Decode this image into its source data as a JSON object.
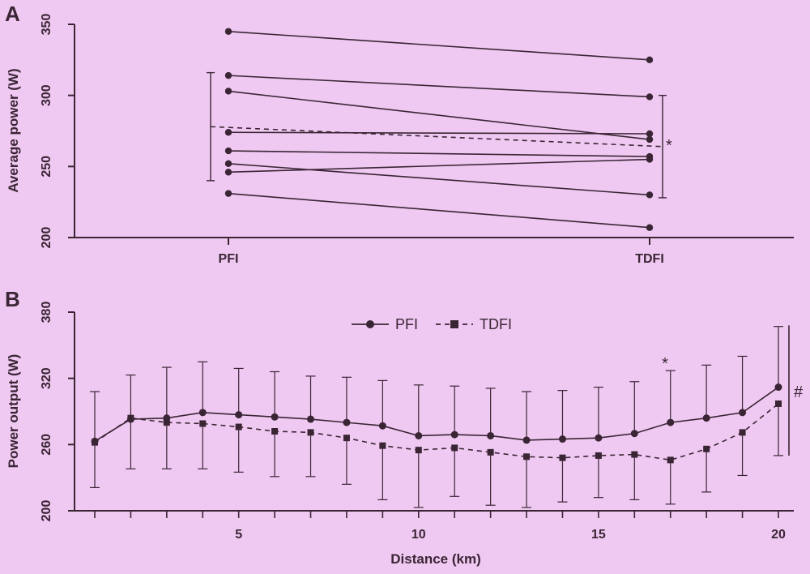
{
  "chart_data": [
    {
      "panel": "A",
      "type": "line",
      "title": "",
      "xlabel": "",
      "ylabel": "Average power (W)",
      "categories": [
        "PFI",
        "TDFI"
      ],
      "ylim": [
        200,
        350
      ],
      "yticks": [
        200,
        250,
        300,
        350
      ],
      "individuals": [
        {
          "values": [
            345,
            325
          ]
        },
        {
          "values": [
            314,
            299
          ]
        },
        {
          "values": [
            303,
            269
          ]
        },
        {
          "values": [
            274,
            273
          ]
        },
        {
          "values": [
            261,
            257
          ]
        },
        {
          "values": [
            252,
            230
          ]
        },
        {
          "values": [
            246,
            255
          ]
        },
        {
          "values": [
            231,
            207
          ]
        }
      ],
      "mean": {
        "values": [
          278,
          264
        ],
        "sd_low": [
          240,
          228
        ],
        "sd_high": [
          316,
          300
        ]
      },
      "annotations": [
        {
          "text": "*",
          "near": "TDFI mean"
        }
      ]
    },
    {
      "panel": "B",
      "type": "line",
      "title": "",
      "xlabel": "Distance (km)",
      "ylabel": "Power output (W)",
      "x": [
        1,
        2,
        3,
        4,
        5,
        6,
        7,
        8,
        9,
        10,
        11,
        12,
        13,
        14,
        15,
        16,
        17,
        18,
        19,
        20
      ],
      "xlim": [
        0.1,
        20.6
      ],
      "xticks": [
        5,
        10,
        15,
        20
      ],
      "ylim": [
        200,
        380
      ],
      "yticks": [
        200,
        260,
        320,
        380
      ],
      "legend": "top-center",
      "series": [
        {
          "name": "PFI",
          "marker": "circle",
          "linestyle": "solid",
          "values": [
            263,
            283,
            284,
            289,
            287,
            285,
            283,
            280,
            277,
            268,
            269,
            268,
            264,
            265,
            266,
            270,
            280,
            284,
            289,
            312
          ],
          "sd_high": [
            308,
            323,
            330,
            335,
            329,
            326,
            322,
            321,
            318,
            314,
            313,
            311,
            308,
            309,
            312,
            317,
            327,
            332,
            340,
            367
          ]
        },
        {
          "name": "TDFI",
          "marker": "square",
          "linestyle": "dashed",
          "values": [
            262,
            284,
            280,
            279,
            276,
            272,
            271,
            266,
            259,
            255,
            257,
            253,
            249,
            248,
            250,
            251,
            246,
            256,
            271,
            297
          ],
          "sd_low": [
            221,
            238,
            238,
            238,
            235,
            231,
            231,
            224,
            210,
            203,
            213,
            205,
            203,
            208,
            212,
            210,
            206,
            217,
            232,
            250
          ]
        }
      ],
      "bracket": {
        "range": [
          250,
          368
        ],
        "text": "#"
      },
      "annotations": [
        {
          "text": "*",
          "x": 17
        }
      ]
    }
  ],
  "labels": {
    "panelA": "A",
    "panelB": "B",
    "starA": "*",
    "starB": "*",
    "hash": "#"
  }
}
